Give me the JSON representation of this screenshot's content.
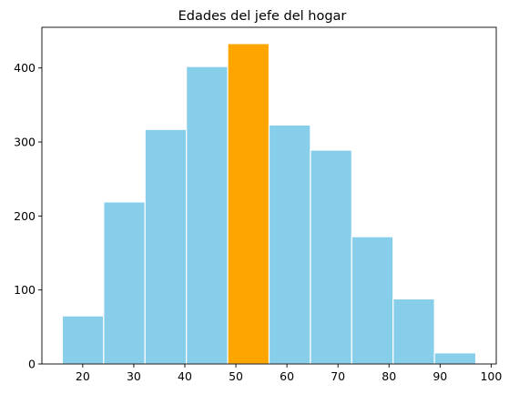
{
  "chart_data": {
    "type": "bar",
    "subtype": "histogram",
    "title": "Edades del jefe del hogar",
    "xlabel": "",
    "ylabel": "",
    "bins": [
      {
        "start": 16.0,
        "end": 24.1,
        "count": 65
      },
      {
        "start": 24.1,
        "end": 32.2,
        "count": 219
      },
      {
        "start": 32.2,
        "end": 40.3,
        "count": 317
      },
      {
        "start": 40.3,
        "end": 48.4,
        "count": 402
      },
      {
        "start": 48.4,
        "end": 56.5,
        "count": 433
      },
      {
        "start": 56.5,
        "end": 64.6,
        "count": 323
      },
      {
        "start": 64.6,
        "end": 72.7,
        "count": 289
      },
      {
        "start": 72.7,
        "end": 80.8,
        "count": 172
      },
      {
        "start": 80.8,
        "end": 88.9,
        "count": 88
      },
      {
        "start": 88.9,
        "end": 97.0,
        "count": 15
      }
    ],
    "highlight_index": 4,
    "bar_color": "#87CEEB",
    "highlight_color": "#FFA500",
    "edge_color": "#ffffff",
    "xlim": [
      12.0,
      101.0
    ],
    "ylim": [
      0,
      455
    ],
    "xticks": [
      20,
      30,
      40,
      50,
      60,
      70,
      80,
      90,
      100
    ],
    "yticks": [
      0,
      100,
      200,
      300,
      400
    ],
    "grid": false,
    "legend": "none"
  }
}
